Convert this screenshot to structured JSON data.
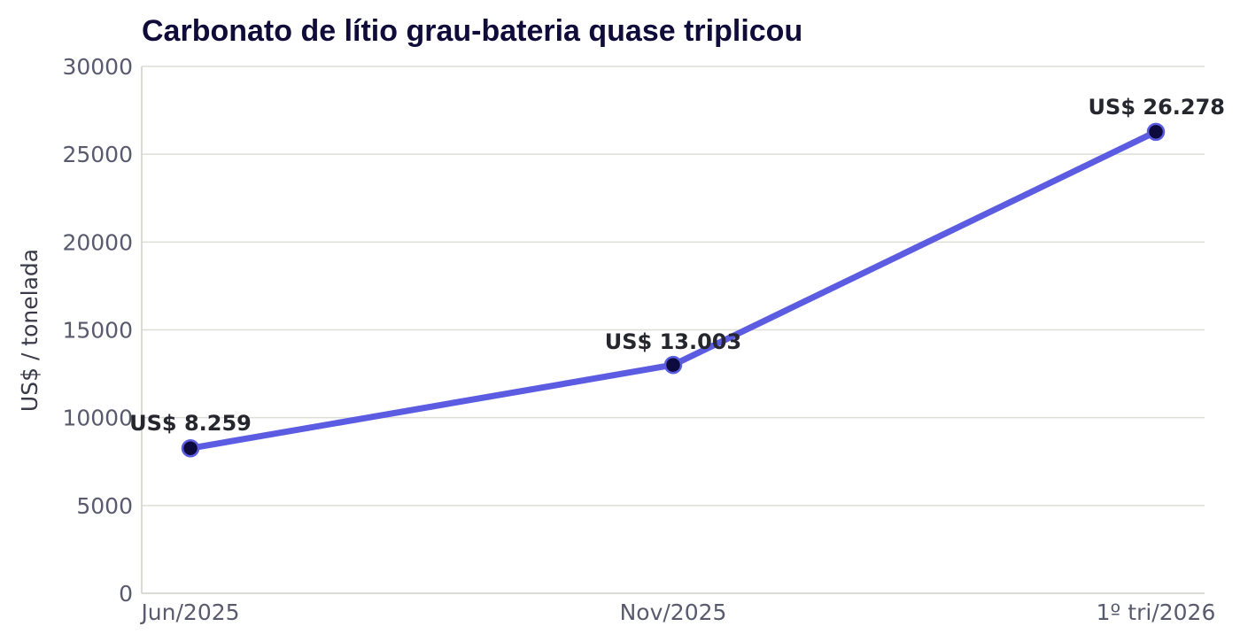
{
  "chart_data": {
    "type": "line",
    "title": "Carbonato de lítio grau-bateria quase triplicou",
    "xlabel": "",
    "ylabel": "US$ / tonelada",
    "categories": [
      "Jun/2025",
      "Nov/2025",
      "1º tri/2026"
    ],
    "series": [
      {
        "values": [
          8259,
          13003,
          26278
        ]
      }
    ],
    "data_labels": [
      "US$ 8.259",
      "US$ 13.003",
      "US$ 26.278"
    ],
    "ylim": [
      0,
      30000
    ],
    "yticks": [
      0,
      5000,
      10000,
      15000,
      20000,
      25000,
      30000
    ],
    "grid": true,
    "colors": {
      "line": "#5b5ce2",
      "marker": "#0d0b3d",
      "marker_edge": "#5b5ce2"
    }
  }
}
